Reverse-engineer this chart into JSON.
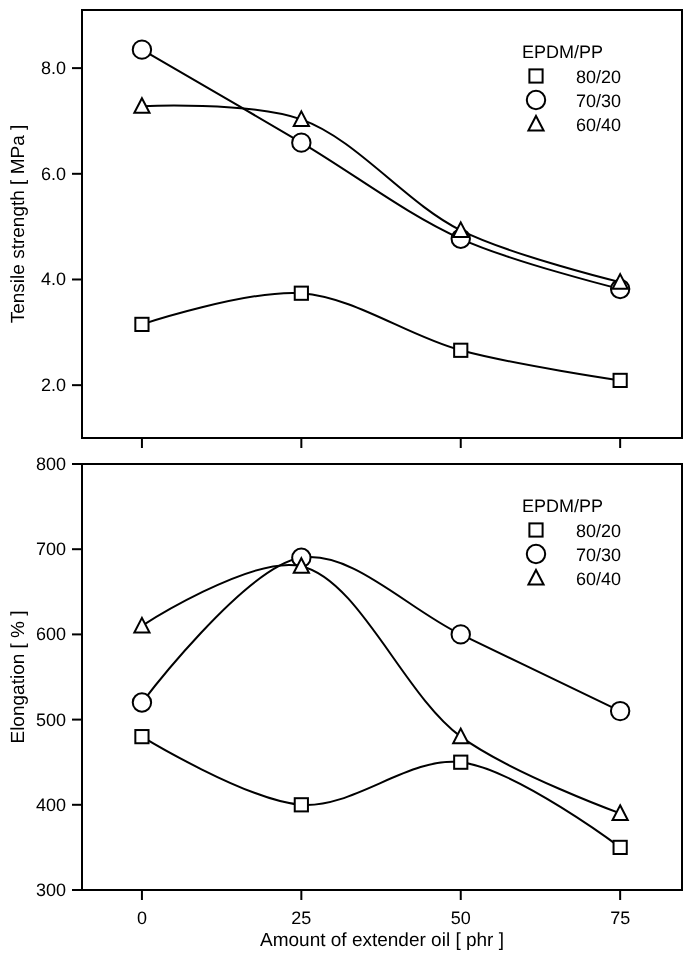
{
  "chart_data": [
    {
      "type": "line",
      "ylabel": "Tensile strength [ MPa  ]",
      "legend_title": "EPDM/PP",
      "x": [
        0,
        25,
        50,
        75
      ],
      "xlim": [
        -9.4,
        84.7
      ],
      "xticks": [
        {
          "value": 0,
          "label": null
        },
        {
          "value": 25,
          "label": null
        },
        {
          "value": 50,
          "label": null
        },
        {
          "value": 75,
          "label": null
        }
      ],
      "ylim": [
        1,
        9.1
      ],
      "yticks": [
        {
          "value": 2,
          "label": "2.0"
        },
        {
          "value": 4,
          "label": "4.0"
        },
        {
          "value": 6,
          "label": "6.0"
        },
        {
          "value": 8,
          "label": "8.0"
        }
      ],
      "tick_labels": "y",
      "legend": "top right",
      "grid": false,
      "series": [
        {
          "name": "80/20",
          "color": "#000000",
          "marker": "square",
          "values": [
            3.15,
            3.74,
            2.66,
            2.09
          ]
        },
        {
          "name": "70/30",
          "color": "#000000",
          "marker": "circle",
          "values": [
            8.35,
            6.59,
            4.77,
            3.82
          ]
        },
        {
          "name": "60/40",
          "color": "#000000",
          "marker": "triangle",
          "values": [
            7.28,
            7.03,
            4.93,
            3.95
          ]
        }
      ]
    },
    {
      "type": "line",
      "xlabel": "Amount of extender oil [ phr ]",
      "ylabel": "Elongation [ % ]",
      "legend_title": "EPDM/PP",
      "x": [
        0,
        25,
        50,
        75
      ],
      "xlim": [
        -9.4,
        84.7
      ],
      "xticks": [
        0,
        25,
        50,
        75
      ],
      "ylim": [
        300,
        800
      ],
      "yticks": [
        300,
        400,
        500,
        600,
        700,
        800
      ],
      "legend": "top right",
      "grid": false,
      "series": [
        {
          "name": "80/20",
          "color": "#000000",
          "marker": "square",
          "values": [
            480,
            400,
            450,
            350
          ]
        },
        {
          "name": "70/30",
          "color": "#000000",
          "marker": "circle",
          "values": [
            520,
            690,
            600,
            510
          ]
        },
        {
          "name": "60/40",
          "color": "#000000",
          "marker": "triangle",
          "values": [
            610,
            680,
            480,
            390
          ]
        }
      ]
    }
  ]
}
